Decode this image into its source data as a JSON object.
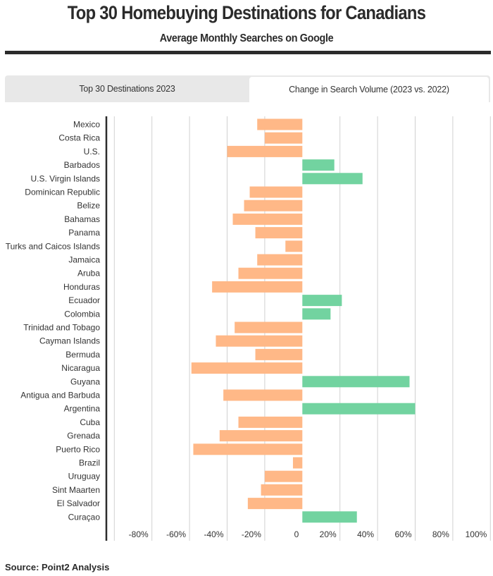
{
  "header": {
    "title": "Top 30 Homebuying Destinations for Canadians",
    "subtitle": "Average Monthly Searches on Google"
  },
  "tabs": [
    {
      "label": "Top 30 Destinations 2023",
      "active": false
    },
    {
      "label": "Change in Search Volume (2023 vs. 2022)",
      "active": true
    }
  ],
  "colors": {
    "negative": "#ffb887",
    "positive": "#72d3a0",
    "grid": "#d0d0d0",
    "axis": "#2b2b2b"
  },
  "chart_data": {
    "type": "bar",
    "orientation": "horizontal",
    "title": "Change in Search Volume (2023 vs. 2022)",
    "xlabel": "",
    "ylabel": "",
    "xlim": [
      -100,
      100
    ],
    "unit": "%",
    "grid": true,
    "x_ticks": [
      "-80%",
      "-60%",
      "-40%",
      "-20%",
      "0",
      "20%",
      "40%",
      "60%",
      "80%",
      "100%"
    ],
    "x_tick_values": [
      -80,
      -60,
      -40,
      -20,
      0,
      20,
      40,
      60,
      80,
      100
    ],
    "categories": [
      "Mexico",
      "Costa Rica",
      "U.S.",
      "Barbados",
      "U.S. Virgin Islands",
      "Dominican Republic",
      "Belize",
      "Bahamas",
      "Panama",
      "Turks and Caicos Islands",
      "Jamaica",
      "Aruba",
      "Honduras",
      "Ecuador",
      "Colombia",
      "Trinidad and Tobago",
      "Cayman Islands",
      "Bermuda",
      "Nicaragua",
      "Guyana",
      "Antigua and Barbuda",
      "Argentina",
      "Cuba",
      "Grenada",
      "Puerto Rico",
      "Brazil",
      "Uruguay",
      "Sint Maarten",
      "El Salvador",
      "Curaçao"
    ],
    "values": [
      -24,
      -20,
      -40,
      17,
      32,
      -28,
      -31,
      -37,
      -25,
      -9,
      -24,
      -34,
      -48,
      21,
      15,
      -36,
      -46,
      -25,
      -59,
      57,
      -42,
      60,
      -34,
      -44,
      -58,
      -5,
      -20,
      -22,
      -29,
      29
    ]
  },
  "footer": {
    "source": "Source: Point2 Analysis"
  }
}
